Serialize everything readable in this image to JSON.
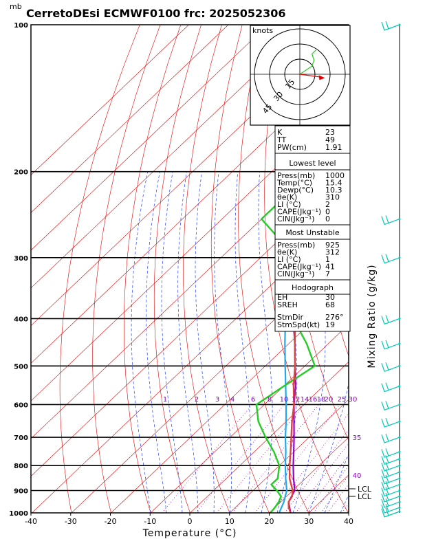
{
  "title": "CerretoDEsi ECMWF0100 frc: 2025052306",
  "pressure_unit": "mb",
  "x_axis_label": "Temperature (°C)",
  "right_axis_label": "Mixing Ratio (g/kg)",
  "hodograph": {
    "unit": "knots",
    "ring_labels": [
      "15",
      "30",
      "45"
    ]
  },
  "colors": {
    "isotherm": "#e00000",
    "dry_adiabat": "#e00000",
    "moist_adiabat": "#2040ff",
    "mixing_ratio": "#b000b0",
    "temperature": "#e04040",
    "dewpoint": "#22cc22",
    "parcel": "#9900cc",
    "wetbulb": "#20a8e8",
    "wind_barb": "#00c8b4"
  },
  "table": {
    "indices": [
      {
        "label": "K",
        "value": "23"
      },
      {
        "label": "TT",
        "value": "49"
      },
      {
        "label": "PW(cm)",
        "value": "1.91"
      }
    ],
    "lowest_level": {
      "header": "Lowest level",
      "rows": [
        {
          "label": "Press(mb)",
          "value": "1000"
        },
        {
          "label": "Temp(°C)",
          "value": "15.4"
        },
        {
          "label": "Dewp(°C)",
          "value": "10.3"
        },
        {
          "label": "θe(K)",
          "value": "310"
        },
        {
          "label": "LI (°C)",
          "value": "2"
        },
        {
          "label": "CAPE(Jkg⁻¹)",
          "value": "0"
        },
        {
          "label": "CIN(Jkg⁻¹)",
          "value": "0"
        }
      ]
    },
    "most_unstable": {
      "header": "Most Unstable",
      "rows": [
        {
          "label": "Press(mb)",
          "value": "925"
        },
        {
          "label": "θe(K)",
          "value": "312"
        },
        {
          "label": "LI (°C)",
          "value": "1"
        },
        {
          "label": "CAPE(Jkg⁻¹)",
          "value": "41"
        },
        {
          "label": "CIN(Jkg⁻¹)",
          "value": "7"
        }
      ]
    },
    "hodograph": {
      "header": "Hodograph",
      "rows": [
        {
          "label": "EH",
          "value": "30"
        },
        {
          "label": "SREH",
          "value": "68"
        },
        {
          "label": "StmDir",
          "value": "276°"
        },
        {
          "label": "StmSpd(kt)",
          "value": "19"
        }
      ]
    }
  },
  "lcl_labels": [
    "LCL",
    "LCL"
  ],
  "chart_data": {
    "type": "skew-t",
    "xlabel": "Temperature (°C)",
    "ylabel": "mb",
    "x_ticks": [
      -40,
      -30,
      -20,
      -10,
      0,
      10,
      20,
      30,
      40
    ],
    "y_ticks": [
      100,
      200,
      300,
      400,
      500,
      600,
      700,
      800,
      900,
      1000
    ],
    "pressure_range": [
      1000,
      100
    ],
    "mixing_ratio_labels": [
      "1",
      "2",
      "3",
      "4",
      "6",
      "8",
      "10",
      "12",
      "14",
      "16",
      "18",
      "20",
      "25",
      "30",
      "35",
      "40"
    ],
    "series": [
      {
        "name": "temperature",
        "pressure": [
          1000,
          975,
          950,
          925,
          900,
          850,
          800,
          750,
          700,
          650,
          600,
          550,
          500,
          450,
          400,
          350,
          300,
          270,
          250,
          220,
          200,
          150,
          100
        ],
        "values": [
          15.4,
          13.5,
          12.0,
          11.4,
          10.0,
          6.0,
          2.6,
          -0.8,
          -4.5,
          -8.5,
          -12.5,
          -17.5,
          -22.5,
          -28.5,
          -35.0,
          -42.0,
          -49.0,
          -53.5,
          -57.0,
          -54.5,
          -53.5,
          -51.5,
          -48.5
        ]
      },
      {
        "name": "dewpoint",
        "pressure": [
          1000,
          975,
          950,
          925,
          900,
          875,
          850,
          800,
          750,
          700,
          650,
          600,
          550,
          500,
          450,
          400,
          350,
          300,
          270,
          250,
          220,
          200,
          150,
          100
        ],
        "values": [
          10.3,
          10.0,
          9.5,
          8.6,
          6.0,
          3.0,
          3.0,
          0.0,
          -5.0,
          -11.0,
          -17.0,
          -22.0,
          -20.0,
          -17.5,
          -25.5,
          -35.5,
          -46.0,
          -56.0,
          -62.0,
          -70.0,
          -70.0,
          -70.0,
          -72.0,
          -75.0
        ]
      },
      {
        "name": "parcel",
        "pressure": [
          1000,
          950,
          900,
          850,
          800,
          750,
          700,
          650,
          600,
          550,
          500,
          450,
          400,
          350,
          300,
          250,
          200,
          150,
          100
        ],
        "values": [
          15.4,
          12.0,
          10.5,
          7.0,
          3.5,
          0.0,
          -3.8,
          -8.0,
          -12.5,
          -17.0,
          -22.5,
          -28.5,
          -35.5,
          -44.0,
          -53.0,
          -63.0,
          -74.0,
          -84.0,
          -95.0
        ]
      },
      {
        "name": "wetbulb",
        "pressure": [
          1000,
          950,
          900,
          850,
          800,
          750,
          700,
          650,
          600,
          550,
          500,
          450,
          400,
          350,
          300,
          250,
          200,
          150,
          100
        ],
        "values": [
          12.5,
          10.8,
          8.5,
          5.0,
          1.5,
          -2.0,
          -6.0,
          -10.0,
          -14.5,
          -19.5,
          -25.0,
          -31.0,
          -37.5,
          -45.5,
          -54.0,
          -64.0,
          -75.0,
          -86.0,
          -98.0
        ]
      }
    ],
    "hodograph_points": [
      [
        0,
        0
      ],
      [
        6,
        4
      ],
      [
        12,
        8
      ],
      [
        14,
        14
      ],
      [
        12,
        20
      ],
      [
        16,
        24
      ]
    ],
    "storm_motion": [
      16,
      -3
    ],
    "wind_barbs_pressure": [
      1000,
      975,
      950,
      925,
      900,
      875,
      850,
      825,
      800,
      775,
      750,
      700,
      650,
      600,
      550,
      500,
      450,
      400,
      300,
      250,
      100
    ]
  }
}
